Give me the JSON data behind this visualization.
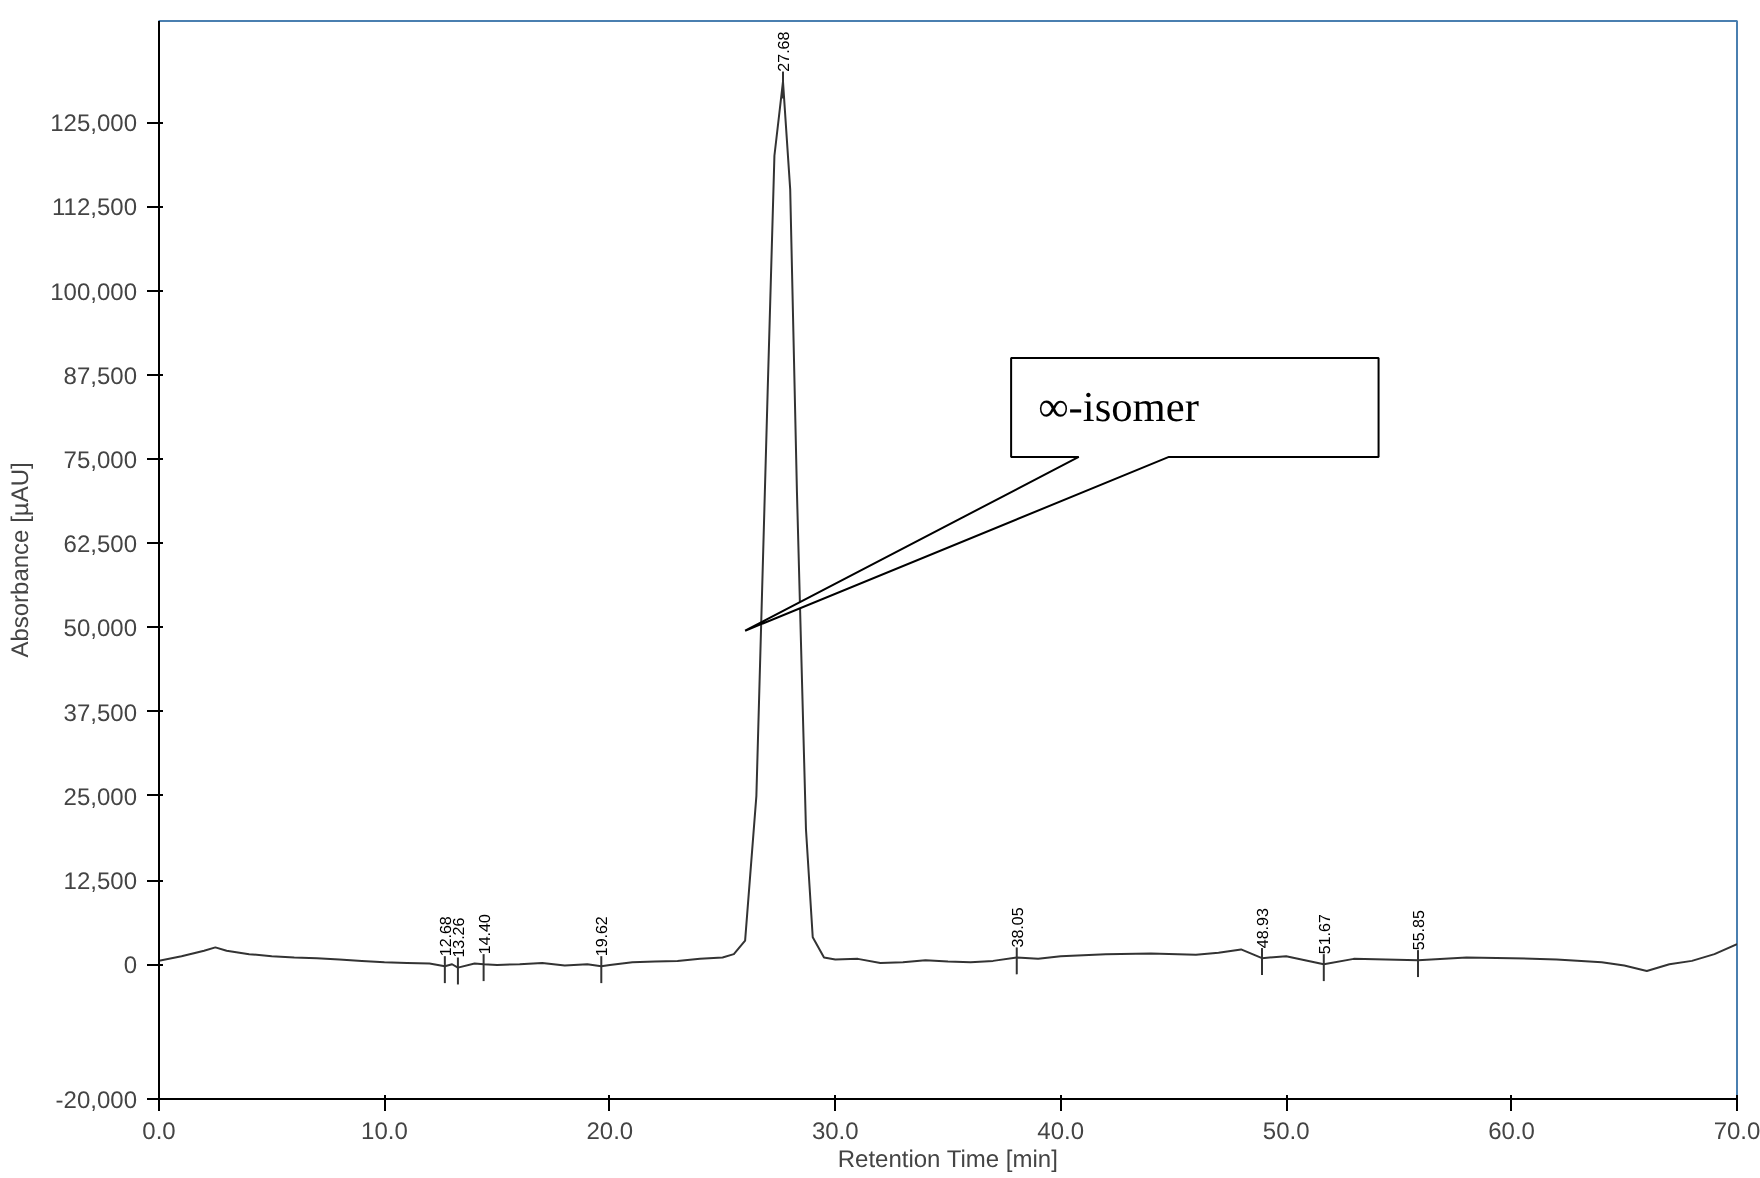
{
  "chart_data": {
    "type": "line",
    "xlabel": "Retention Time [min]",
    "ylabel": "Absorbance [µAU]",
    "x": [
      0,
      1,
      2,
      2.5,
      3,
      4,
      5,
      6,
      7,
      8,
      9,
      10,
      11,
      12,
      12.68,
      13,
      13.26,
      14,
      14.4,
      15,
      16,
      17,
      18,
      19,
      19.62,
      20,
      21,
      22,
      23,
      24,
      25,
      25.5,
      26,
      26.5,
      27,
      27.3,
      27.68,
      28,
      28.3,
      28.7,
      29,
      29.5,
      30,
      31,
      32,
      33,
      34,
      35,
      36,
      37,
      38.05,
      39,
      40,
      42,
      44,
      46,
      47,
      48,
      48.93,
      50,
      51.67,
      53,
      55.85,
      58,
      60,
      62,
      64,
      65,
      66,
      67,
      68,
      69,
      70
    ],
    "series": [
      {
        "color": "#333333",
        "values": [
          500,
          1200,
          2000,
          2500,
          2000,
          1500,
          1200,
          1000,
          900,
          700,
          500,
          300,
          200,
          100,
          -300,
          0,
          -500,
          100,
          0,
          -100,
          0,
          200,
          -200,
          0,
          -300,
          -100,
          300,
          400,
          500,
          800,
          1000,
          1500,
          3500,
          25000,
          85000,
          120000,
          131000,
          115000,
          70000,
          20000,
          4000,
          1000,
          700,
          800,
          200,
          300,
          600,
          400,
          300,
          500,
          1000,
          800,
          1200,
          1500,
          1600,
          1400,
          1700,
          2200,
          900,
          1200,
          0,
          800,
          600,
          1000,
          900,
          700,
          300,
          -200,
          -1000,
          0,
          500,
          1500,
          3000
        ]
      }
    ],
    "xlim": [
      0,
      70
    ],
    "ylim": [
      -20000,
      140000
    ],
    "xticks": [
      {
        "value": 0,
        "label": "0.0"
      },
      {
        "value": 10,
        "label": "10.0"
      },
      {
        "value": 20,
        "label": "20.0"
      },
      {
        "value": 30,
        "label": "30.0"
      },
      {
        "value": 40,
        "label": "40.0"
      },
      {
        "value": 50,
        "label": "50.0"
      },
      {
        "value": 60,
        "label": "60.0"
      },
      {
        "value": 70,
        "label": "70.0"
      }
    ],
    "yticks": [
      {
        "value": -20000,
        "label": "-20,000"
      },
      0,
      {
        "value": 12500,
        "label": "12,500"
      },
      {
        "value": 25000,
        "label": "25,000"
      },
      {
        "value": 37500,
        "label": "37,500"
      },
      {
        "value": 50000,
        "label": "50,000"
      },
      {
        "value": 62500,
        "label": "62,500"
      },
      {
        "value": 75000,
        "label": "75,000"
      },
      {
        "value": 87500,
        "label": "87,500"
      },
      {
        "value": 100000,
        "label": "100,000"
      },
      {
        "value": 112500,
        "label": "112,500"
      },
      {
        "value": 125000,
        "label": "125,000"
      }
    ],
    "grid": false,
    "marker": "none",
    "line_style": "solid",
    "annotations": [
      "∞-isomer",
      {
        "text": "12.68",
        "x": 12.68,
        "y": -300
      },
      {
        "text": "13.26",
        "x": 13.26,
        "y": -500
      },
      {
        "text": "14.40",
        "x": 14.4,
        "y": 0
      },
      {
        "text": "19.62",
        "x": 19.62,
        "y": -300
      },
      {
        "text": "27.68",
        "x": 27.68,
        "y": 131000
      },
      {
        "text": "38.05",
        "x": 38.05,
        "y": 1000
      },
      {
        "text": "48.93",
        "x": 48.93,
        "y": 900
      },
      {
        "text": "51.67",
        "x": 51.67,
        "y": 0
      },
      {
        "text": "55.85",
        "x": 55.85,
        "y": 600
      }
    ]
  }
}
